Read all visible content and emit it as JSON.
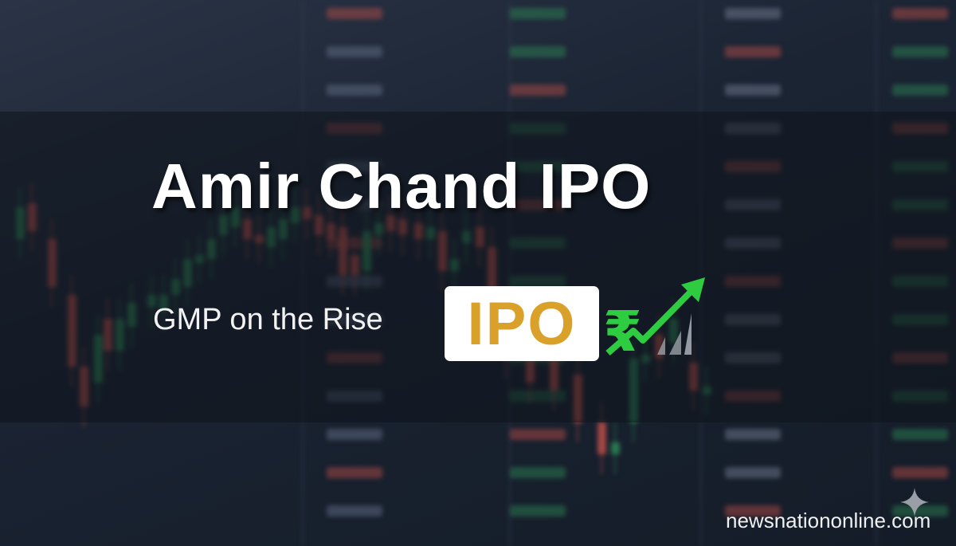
{
  "headline": "Amir Chand IPO",
  "subheadline": "GMP on the Rise",
  "badge": {
    "label": "IPO",
    "color": "#d9a02a"
  },
  "icon": {
    "name": "rupee-rising-arrow-icon",
    "color": "#2ecc40"
  },
  "watermark": "newsnationonline.com",
  "colors": {
    "background": "#1b2433",
    "candle_up": "#2e8b57",
    "candle_down": "#c0504a"
  }
}
